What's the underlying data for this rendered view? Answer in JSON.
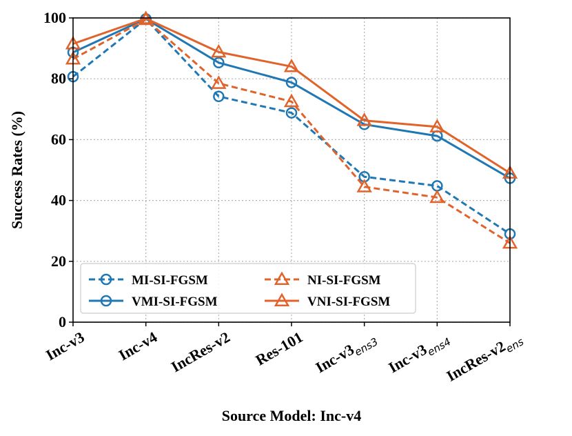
{
  "chart_data": {
    "type": "line",
    "title": "",
    "xlabel": "Source Model: Inc-v4",
    "ylabel": "Success Rates (%)",
    "ylim": [
      0,
      100
    ],
    "yticks": [
      "0",
      "20",
      "40",
      "60",
      "80",
      "100"
    ],
    "grid": true,
    "legend_position": "lower-left",
    "categories": [
      {
        "main": "Inc-v3",
        "sub": ""
      },
      {
        "main": "Inc-v4",
        "sub": ""
      },
      {
        "main": "IncRes-v2",
        "sub": ""
      },
      {
        "main": "Res-101",
        "sub": ""
      },
      {
        "main": "Inc-v3",
        "sub": "ens3"
      },
      {
        "main": "Inc-v3",
        "sub": "ens4"
      },
      {
        "main": "IncRes-v2",
        "sub": "ens"
      }
    ],
    "series": [
      {
        "name": "MI-SI-FGSM",
        "color": "#1f77b4",
        "dashed": true,
        "marker": "circle",
        "values": [
          80.7,
          99.6,
          74.2,
          68.8,
          47.8,
          44.8,
          29.0
        ]
      },
      {
        "name": "VMI-SI-FGSM",
        "color": "#1f77b4",
        "dashed": false,
        "marker": "circle",
        "values": [
          88.7,
          99.7,
          85.3,
          78.8,
          65.0,
          61.2,
          47.3
        ]
      },
      {
        "name": "NI-SI-FGSM",
        "color": "#e0632b",
        "dashed": true,
        "marker": "triangle",
        "values": [
          86.5,
          99.5,
          78.5,
          72.5,
          44.5,
          41.0,
          26.0
        ]
      },
      {
        "name": "VNI-SI-FGSM",
        "color": "#e0632b",
        "dashed": false,
        "marker": "triangle",
        "values": [
          91.5,
          99.8,
          88.8,
          84.0,
          66.3,
          64.2,
          49.0
        ]
      }
    ]
  }
}
